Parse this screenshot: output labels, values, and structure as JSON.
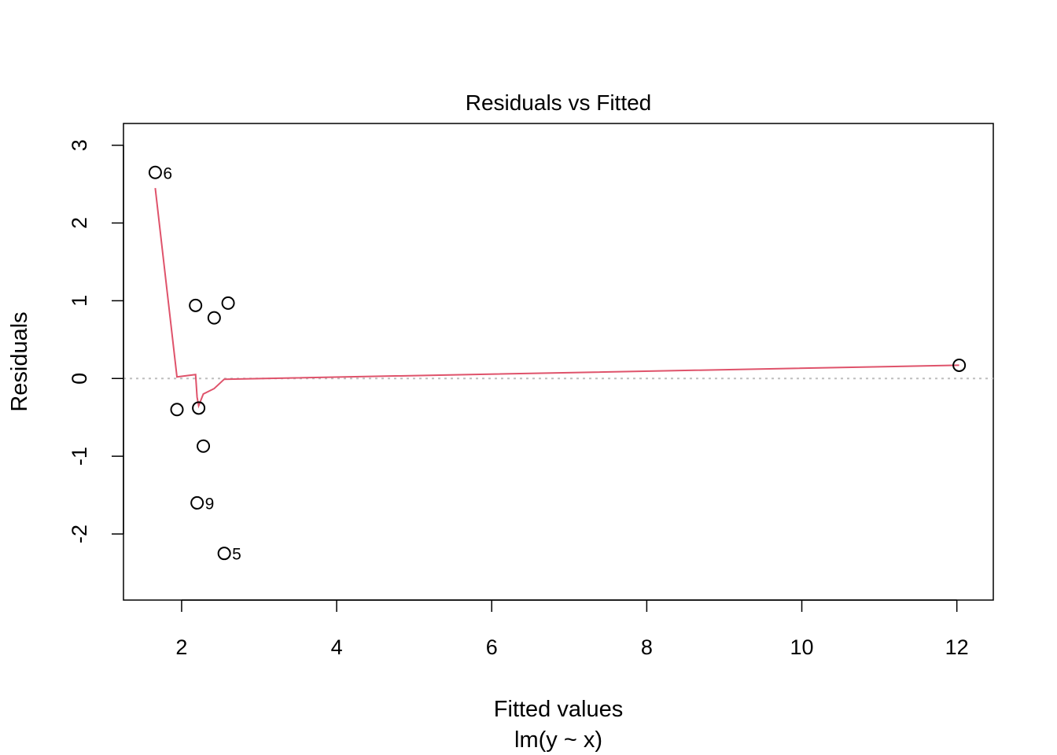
{
  "chart_data": {
    "type": "scatter",
    "title": "Residuals vs Fitted",
    "xlabel": "Fitted values",
    "xlabel_sub": "lm(y ~ x)",
    "ylabel": "Residuals",
    "xlim": [
      1.25,
      12.47
    ],
    "ylim": [
      -2.85,
      3.28
    ],
    "x_ticks": [
      2,
      4,
      6,
      8,
      10,
      12
    ],
    "y_ticks": [
      -2,
      -1,
      0,
      1,
      2,
      3
    ],
    "grid": false,
    "points": [
      {
        "x": 1.66,
        "y": 2.65,
        "label": "6"
      },
      {
        "x": 1.94,
        "y": -0.4,
        "label": ""
      },
      {
        "x": 2.18,
        "y": 0.94,
        "label": ""
      },
      {
        "x": 2.2,
        "y": -1.6,
        "label": "9"
      },
      {
        "x": 2.22,
        "y": -0.38,
        "label": ""
      },
      {
        "x": 2.28,
        "y": -0.87,
        "label": ""
      },
      {
        "x": 2.42,
        "y": 0.78,
        "label": ""
      },
      {
        "x": 2.55,
        "y": -2.25,
        "label": "5"
      },
      {
        "x": 2.6,
        "y": 0.97,
        "label": ""
      },
      {
        "x": 12.03,
        "y": 0.17,
        "label": ""
      }
    ],
    "smooth_line": {
      "color": "#DF536B",
      "x": [
        1.66,
        1.94,
        2.18,
        2.2,
        2.22,
        2.28,
        2.42,
        2.55,
        12.03
      ],
      "y": [
        2.45,
        0.02,
        0.05,
        -0.24,
        -0.35,
        -0.2,
        -0.13,
        -0.01,
        0.17
      ]
    },
    "reference_line": {
      "y": 0,
      "color": "#BEBEBE",
      "style": "dotted"
    }
  }
}
